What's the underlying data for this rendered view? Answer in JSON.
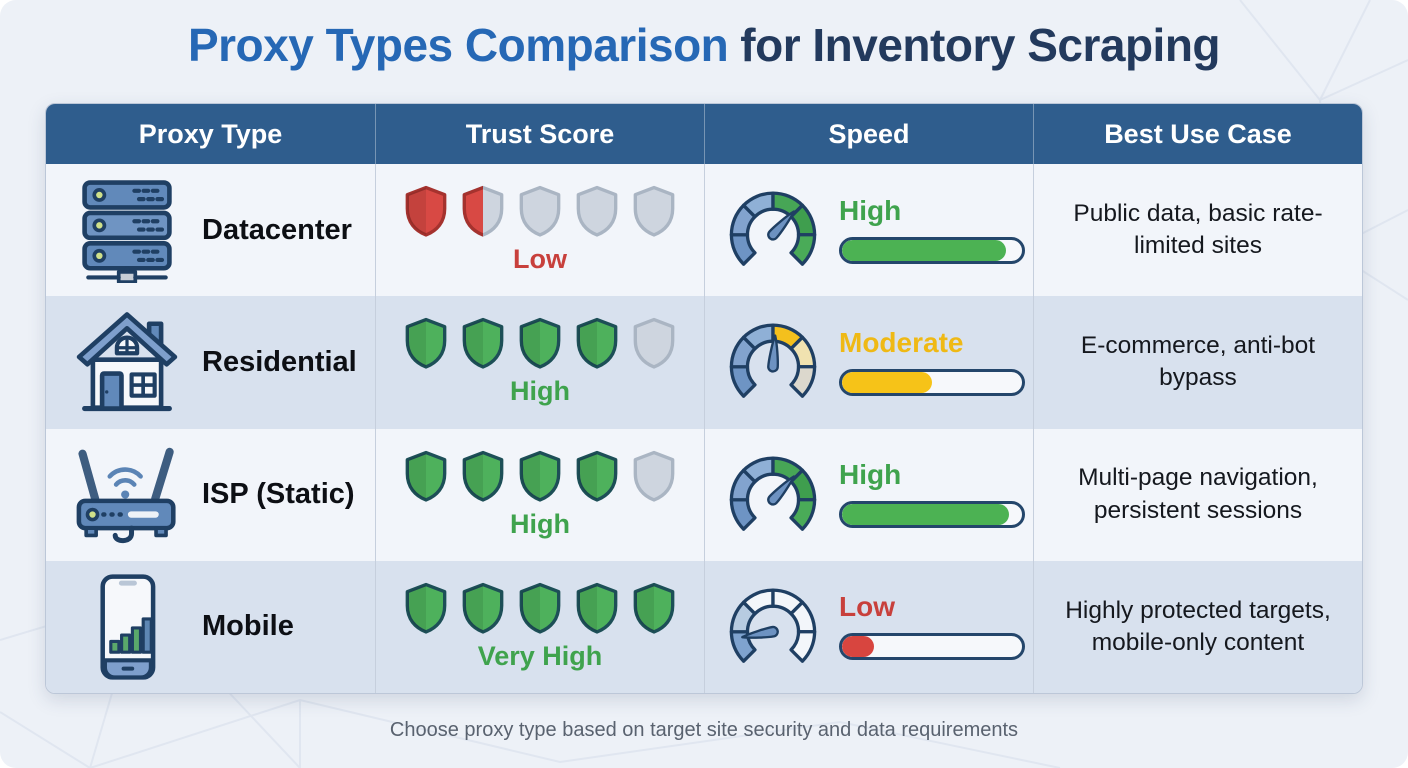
{
  "title": {
    "highlight": "Proxy Types Comparison",
    "rest": "for Inventory Scraping"
  },
  "footer_note": "Choose proxy type based on target site security and data requirements",
  "colors": {
    "header_bg": "#2f5d8d",
    "row_light": "#f2f5fa",
    "row_dark": "#d8e1ee",
    "outline_navy": "#1f3f63",
    "title_blue": "#2668b5",
    "title_dark": "#233a5d",
    "green": "#3fa34d",
    "yellow": "#efb915",
    "red": "#c8403c"
  },
  "table": {
    "headers": [
      "Proxy Type",
      "Trust Score",
      "Speed",
      "Best Use Case"
    ],
    "rows": [
      {
        "type": "Datacenter",
        "icon": "server-rack-icon",
        "trust": {
          "label": "Low",
          "score": 1.5,
          "max": 5,
          "color": "#c8403c",
          "shield_fill": "#d84944",
          "shield_stroke": "#a5322e"
        },
        "speed": {
          "label": "High",
          "color": "#3fa34d",
          "bar_percent": 91,
          "bar_color": "#4cb253",
          "gauge_segments": [
            "#6e94c4",
            "#82a3ce",
            "#8fb0d6",
            "#47a656",
            "#3f9e4e",
            "#4aab58"
          ],
          "needle_angle": 42
        },
        "use_case": "Public data, basic rate-limited sites"
      },
      {
        "type": "Residential",
        "icon": "house-icon",
        "trust": {
          "label": "High",
          "score": 4,
          "max": 5,
          "color": "#3fa34d",
          "shield_fill": "#4eb15c",
          "shield_stroke": "#1d4f57"
        },
        "speed": {
          "label": "Moderate",
          "color": "#efb915",
          "bar_percent": 50,
          "bar_color": "#f6c318",
          "gauge_segments": [
            "#6e94c4",
            "#82a3ce",
            "#8fb0d6",
            "#f4c01d",
            "#f0e2b0",
            "#dcd8cd"
          ],
          "needle_angle": 4
        },
        "use_case": "E-commerce, anti-bot bypass"
      },
      {
        "type": "ISP (Static)",
        "icon": "router-icon",
        "trust": {
          "label": "High",
          "score": 4,
          "max": 5,
          "color": "#3fa34d",
          "shield_fill": "#4eb15c",
          "shield_stroke": "#1d4f57"
        },
        "speed": {
          "label": "High",
          "color": "#3fa34d",
          "bar_percent": 93,
          "bar_color": "#4cb253",
          "gauge_segments": [
            "#6e94c4",
            "#82a3ce",
            "#8fb0d6",
            "#47a656",
            "#3f9e4e",
            "#4aab58"
          ],
          "needle_angle": 42
        },
        "use_case": "Multi-page navigation, persistent sessions"
      },
      {
        "type": "Mobile",
        "icon": "smartphone-icon",
        "trust": {
          "label": "Very High",
          "score": 5,
          "max": 5,
          "color": "#3fa34d",
          "shield_fill": "#4eb15c",
          "shield_stroke": "#1d4f57"
        },
        "speed": {
          "label": "Low",
          "color": "#c8403c",
          "bar_percent": 18,
          "bar_color": "#d8453f",
          "gauge_segments": [
            "#7fa3cf",
            "#b7cbe1",
            "#f3f6fa",
            "#f3f6fa",
            "#f3f6fa",
            "#f3f6fa"
          ],
          "needle_angle": -100
        },
        "use_case": "Highly protected targets, mobile-only content"
      }
    ]
  },
  "chart_data": {
    "type": "table",
    "title": "Proxy Types Comparison for Inventory Scraping",
    "columns": [
      "Proxy Type",
      "Trust Score",
      "Speed",
      "Best Use Case"
    ],
    "rows": [
      [
        "Datacenter",
        "Low (1.5 of 5 shields)",
        "High (bar ~91%)",
        "Public data, basic rate-limited sites"
      ],
      [
        "Residential",
        "High (4 of 5 shields)",
        "Moderate (bar ~50%)",
        "E-commerce, anti-bot bypass"
      ],
      [
        "ISP (Static)",
        "High (4 of 5 shields)",
        "High (bar ~93%)",
        "Multi-page navigation, persistent sessions"
      ],
      [
        "Mobile",
        "Very High (5 of 5 shields)",
        "Low (bar ~18%)",
        "Highly protected targets, mobile-only content"
      ]
    ],
    "note": "Choose proxy type based on target site security and data requirements"
  }
}
